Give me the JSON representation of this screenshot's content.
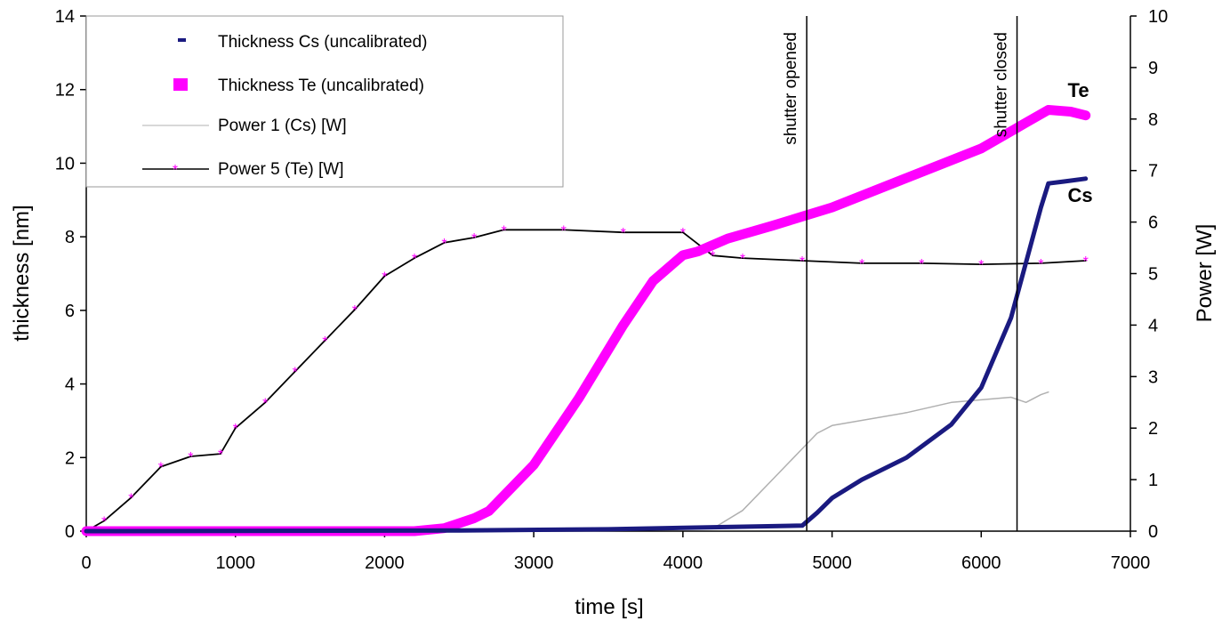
{
  "chart_data": {
    "type": "line",
    "xlabel": "time [s]",
    "ylabel": "thickness [nm]",
    "y2label": "Power [W]",
    "xlim": [
      0,
      7000
    ],
    "ylim": [
      0,
      14
    ],
    "y2lim": [
      0,
      10
    ],
    "x_ticks": [
      "0",
      "1000",
      "2000",
      "3000",
      "4000",
      "5000",
      "6000",
      "7000"
    ],
    "y_ticks": [
      "0",
      "2",
      "4",
      "6",
      "8",
      "10",
      "12",
      "14"
    ],
    "y2_ticks": [
      "0",
      "1",
      "2",
      "3",
      "4",
      "5",
      "6",
      "7",
      "8",
      "9",
      "10"
    ],
    "grid": false,
    "legend_position": "top-left",
    "colors": {
      "cs": "#1a1a80",
      "te": "#ff00ff",
      "power1": "#b0b0b0",
      "power5": "#000000"
    },
    "series": [
      {
        "name": "Thickness Cs (uncalibrated)",
        "axis": "left",
        "x": [
          0,
          2500,
          3500,
          4800,
          4900,
          5000,
          5200,
          5500,
          5800,
          6000,
          6200,
          6300,
          6400,
          6450,
          6550,
          6700
        ],
        "y": [
          0,
          0.02,
          0.05,
          0.15,
          0.5,
          0.9,
          1.4,
          2.0,
          2.9,
          3.9,
          5.8,
          7.3,
          8.8,
          9.45,
          9.5,
          9.58
        ]
      },
      {
        "name": "Thickness Te (uncalibrated)",
        "axis": "left",
        "x": [
          0,
          2200,
          2400,
          2600,
          2700,
          3000,
          3300,
          3600,
          3800,
          4000,
          4100,
          4300,
          4600,
          5000,
          5500,
          6000,
          6300,
          6450,
          6600,
          6700
        ],
        "y": [
          0,
          0.0,
          0.08,
          0.35,
          0.55,
          1.8,
          3.6,
          5.6,
          6.8,
          7.5,
          7.6,
          7.95,
          8.3,
          8.8,
          9.6,
          10.4,
          11.1,
          11.45,
          11.4,
          11.3
        ]
      },
      {
        "name": "Power 1 (Cs) [W]",
        "axis": "right",
        "x": [
          0,
          4200,
          4400,
          4600,
          4800,
          4900,
          5000,
          5500,
          5800,
          6200,
          6300,
          6400,
          6450
        ],
        "y": [
          0,
          0.05,
          0.4,
          1.0,
          1.6,
          1.9,
          2.05,
          2.3,
          2.5,
          2.6,
          2.5,
          2.65,
          2.7
        ]
      },
      {
        "name": "Power 5 (Te) [W]",
        "axis": "right",
        "x": [
          0,
          120,
          300,
          500,
          700,
          900,
          1000,
          1200,
          1400,
          1600,
          1800,
          2000,
          2200,
          2400,
          2600,
          2800,
          3200,
          3600,
          4000,
          4200,
          4400,
          4800,
          5200,
          5600,
          6000,
          6400,
          6700
        ],
        "y": [
          0,
          0.2,
          0.65,
          1.25,
          1.45,
          1.5,
          2.0,
          2.5,
          3.1,
          3.7,
          4.3,
          4.95,
          5.3,
          5.6,
          5.7,
          5.85,
          5.85,
          5.8,
          5.8,
          5.35,
          5.3,
          5.25,
          5.2,
          5.2,
          5.18,
          5.2,
          5.25
        ]
      }
    ],
    "annotations": {
      "shutter_opened": {
        "text": "shutter opened",
        "x": 4830
      },
      "shutter_closed": {
        "text": "shutter closed",
        "x": 6240
      },
      "te_label": {
        "text": "Te",
        "x": 6580,
        "y": 11.8
      },
      "cs_label": {
        "text": "Cs",
        "x": 6580,
        "y": 8.95
      }
    }
  }
}
